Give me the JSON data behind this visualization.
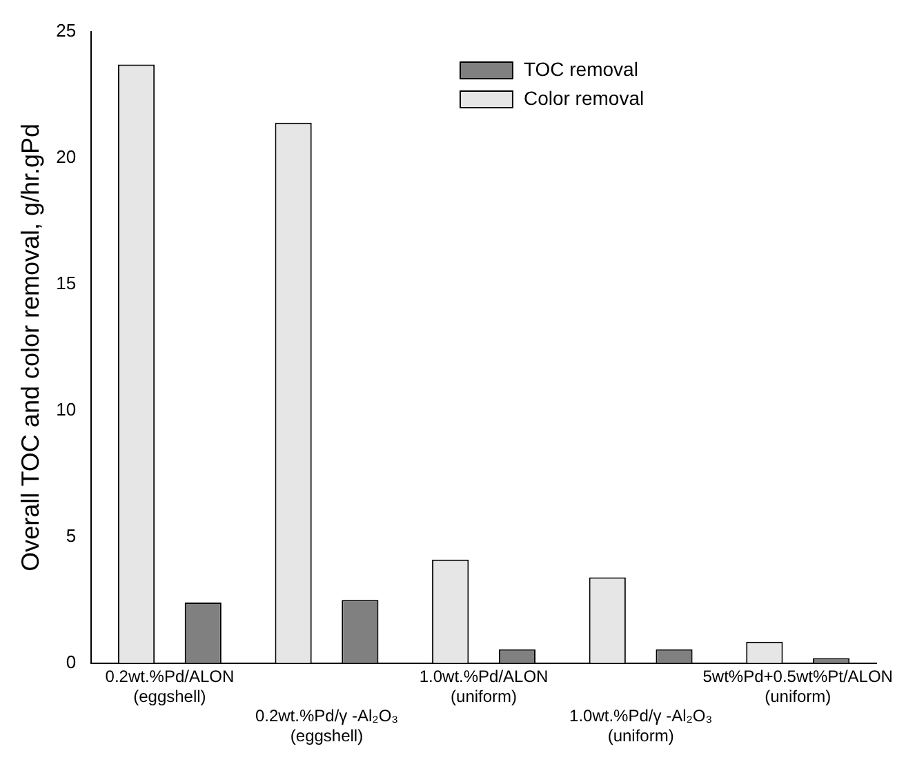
{
  "chart_data": {
    "type": "bar",
    "categories": [
      "0.2wt.%Pd/ALON (eggshell)",
      "0.2wt.%Pd/γ -Al₂O₃ (eggshell)",
      "1.0wt.%Pd/ALON (uniform)",
      "1.0wt.%Pd/γ -Al₂O₃ (uniform)",
      "5wt%Pd+0.5wt%Pt/ALON (uniform)"
    ],
    "ylabel": "Overall TOC and color removal, g/hr.gPd",
    "series": [
      {
        "name": "Color removal",
        "color": "#e6e6e6",
        "values": [
          23.7,
          21.4,
          4.1,
          3.4,
          0.85
        ]
      },
      {
        "name": "TOC removal",
        "color": "#808080",
        "values": [
          2.4,
          2.5,
          0.55,
          0.55,
          0.2
        ]
      }
    ],
    "ylim": [
      0,
      25
    ],
    "yticks": [
      0,
      5,
      10,
      15,
      20,
      25
    ],
    "grid": false,
    "legend": "top right"
  }
}
